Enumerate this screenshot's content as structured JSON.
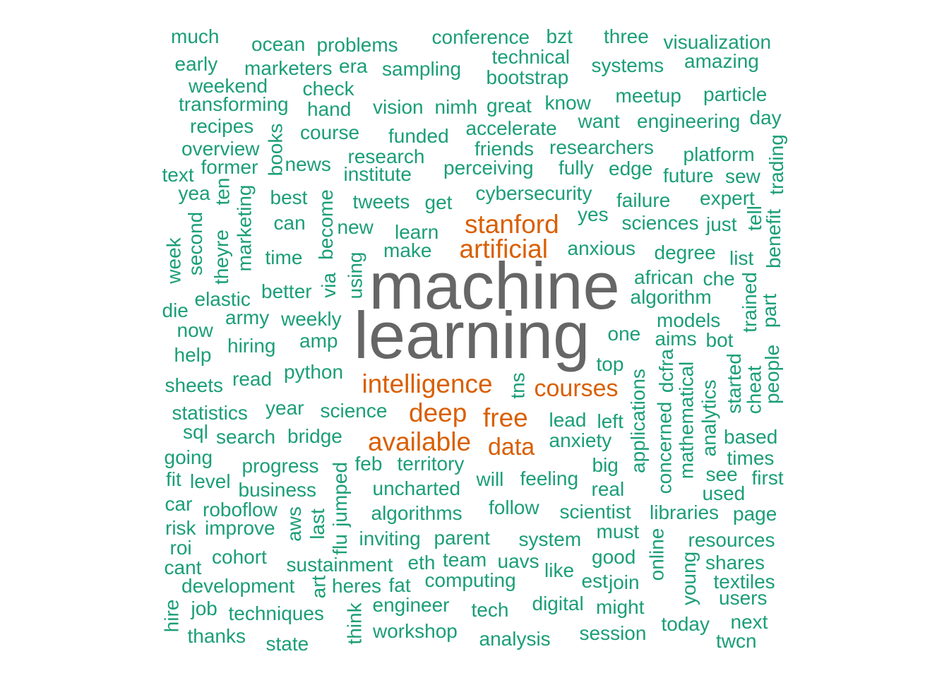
{
  "colors": {
    "primary_word": "#666666",
    "high_freq": "#d95f02",
    "normal": "#1b9e77"
  },
  "words": [
    {
      "text": "machine",
      "group": "primary_word"
    },
    {
      "text": "learning",
      "group": "primary_word"
    },
    {
      "text": "stanford",
      "group": "high_freq"
    },
    {
      "text": "artificial",
      "group": "high_freq"
    },
    {
      "text": "intelligence",
      "group": "high_freq"
    },
    {
      "text": "courses",
      "group": "high_freq"
    },
    {
      "text": "deep",
      "group": "high_freq"
    },
    {
      "text": "free",
      "group": "high_freq"
    },
    {
      "text": "available",
      "group": "high_freq"
    },
    {
      "text": "data",
      "group": "high_freq"
    },
    {
      "text": "much",
      "group": "normal"
    },
    {
      "text": "ocean",
      "group": "normal"
    },
    {
      "text": "problems",
      "group": "normal"
    },
    {
      "text": "conference",
      "group": "normal"
    },
    {
      "text": "bzt",
      "group": "normal"
    },
    {
      "text": "three",
      "group": "normal"
    },
    {
      "text": "visualization",
      "group": "normal"
    },
    {
      "text": "technical",
      "group": "normal"
    },
    {
      "text": "early",
      "group": "normal"
    },
    {
      "text": "marketers",
      "group": "normal"
    },
    {
      "text": "era",
      "group": "normal"
    },
    {
      "text": "sampling",
      "group": "normal"
    },
    {
      "text": "bootstrap",
      "group": "normal"
    },
    {
      "text": "systems",
      "group": "normal"
    },
    {
      "text": "amazing",
      "group": "normal"
    },
    {
      "text": "weekend",
      "group": "normal"
    },
    {
      "text": "check",
      "group": "normal"
    },
    {
      "text": "meetup",
      "group": "normal"
    },
    {
      "text": "particle",
      "group": "normal"
    },
    {
      "text": "transforming",
      "group": "normal"
    },
    {
      "text": "hand",
      "group": "normal"
    },
    {
      "text": "vision",
      "group": "normal"
    },
    {
      "text": "nimh",
      "group": "normal"
    },
    {
      "text": "great",
      "group": "normal"
    },
    {
      "text": "know",
      "group": "normal"
    },
    {
      "text": "want",
      "group": "normal"
    },
    {
      "text": "engineering",
      "group": "normal"
    },
    {
      "text": "day",
      "group": "normal"
    },
    {
      "text": "recipes",
      "group": "normal"
    },
    {
      "text": "course",
      "group": "normal"
    },
    {
      "text": "funded",
      "group": "normal"
    },
    {
      "text": "accelerate",
      "group": "normal"
    },
    {
      "text": "books",
      "group": "normal"
    },
    {
      "text": "overview",
      "group": "normal"
    },
    {
      "text": "research",
      "group": "normal"
    },
    {
      "text": "friends",
      "group": "normal"
    },
    {
      "text": "researchers",
      "group": "normal"
    },
    {
      "text": "platform",
      "group": "normal"
    },
    {
      "text": "trading",
      "group": "normal"
    },
    {
      "text": "text",
      "group": "normal"
    },
    {
      "text": "former",
      "group": "normal"
    },
    {
      "text": "news",
      "group": "normal"
    },
    {
      "text": "institute",
      "group": "normal"
    },
    {
      "text": "perceiving",
      "group": "normal"
    },
    {
      "text": "fully",
      "group": "normal"
    },
    {
      "text": "edge",
      "group": "normal"
    },
    {
      "text": "future",
      "group": "normal"
    },
    {
      "text": "sew",
      "group": "normal"
    },
    {
      "text": "yea",
      "group": "normal"
    },
    {
      "text": "ten",
      "group": "normal"
    },
    {
      "text": "best",
      "group": "normal"
    },
    {
      "text": "become",
      "group": "normal"
    },
    {
      "text": "tweets",
      "group": "normal"
    },
    {
      "text": "get",
      "group": "normal"
    },
    {
      "text": "cybersecurity",
      "group": "normal"
    },
    {
      "text": "failure",
      "group": "normal"
    },
    {
      "text": "expert",
      "group": "normal"
    },
    {
      "text": "marketing",
      "group": "normal"
    },
    {
      "text": "benefit",
      "group": "normal"
    },
    {
      "text": "tell",
      "group": "normal"
    },
    {
      "text": "second",
      "group": "normal"
    },
    {
      "text": "can",
      "group": "normal"
    },
    {
      "text": "new",
      "group": "normal"
    },
    {
      "text": "learn",
      "group": "normal"
    },
    {
      "text": "yes",
      "group": "normal"
    },
    {
      "text": "sciences",
      "group": "normal"
    },
    {
      "text": "just",
      "group": "normal"
    },
    {
      "text": "theyre",
      "group": "normal"
    },
    {
      "text": "week",
      "group": "normal"
    },
    {
      "text": "time",
      "group": "normal"
    },
    {
      "text": "make",
      "group": "normal"
    },
    {
      "text": "anxious",
      "group": "normal"
    },
    {
      "text": "degree",
      "group": "normal"
    },
    {
      "text": "list",
      "group": "normal"
    },
    {
      "text": "using",
      "group": "normal"
    },
    {
      "text": "african",
      "group": "normal"
    },
    {
      "text": "che",
      "group": "normal"
    },
    {
      "text": "elastic",
      "group": "normal"
    },
    {
      "text": "better",
      "group": "normal"
    },
    {
      "text": "via",
      "group": "normal"
    },
    {
      "text": "algorithm",
      "group": "normal"
    },
    {
      "text": "trained",
      "group": "normal"
    },
    {
      "text": "part",
      "group": "normal"
    },
    {
      "text": "die",
      "group": "normal"
    },
    {
      "text": "army",
      "group": "normal"
    },
    {
      "text": "weekly",
      "group": "normal"
    },
    {
      "text": "models",
      "group": "normal"
    },
    {
      "text": "now",
      "group": "normal"
    },
    {
      "text": "amp",
      "group": "normal"
    },
    {
      "text": "one",
      "group": "normal"
    },
    {
      "text": "aims",
      "group": "normal"
    },
    {
      "text": "bot",
      "group": "normal"
    },
    {
      "text": "help",
      "group": "normal"
    },
    {
      "text": "hiring",
      "group": "normal"
    },
    {
      "text": "top",
      "group": "normal"
    },
    {
      "text": "people",
      "group": "normal"
    },
    {
      "text": "read",
      "group": "normal"
    },
    {
      "text": "python",
      "group": "normal"
    },
    {
      "text": "applications",
      "group": "normal"
    },
    {
      "text": "dcfra",
      "group": "normal"
    },
    {
      "text": "mathematical",
      "group": "normal"
    },
    {
      "text": "started",
      "group": "normal"
    },
    {
      "text": "cheat",
      "group": "normal"
    },
    {
      "text": "sheets",
      "group": "normal"
    },
    {
      "text": "tns",
      "group": "normal"
    },
    {
      "text": "statistics",
      "group": "normal"
    },
    {
      "text": "year",
      "group": "normal"
    },
    {
      "text": "science",
      "group": "normal"
    },
    {
      "text": "lead",
      "group": "normal"
    },
    {
      "text": "left",
      "group": "normal"
    },
    {
      "text": "concerned",
      "group": "normal"
    },
    {
      "text": "analytics",
      "group": "normal"
    },
    {
      "text": "sql",
      "group": "normal"
    },
    {
      "text": "search",
      "group": "normal"
    },
    {
      "text": "bridge",
      "group": "normal"
    },
    {
      "text": "anxiety",
      "group": "normal"
    },
    {
      "text": "based",
      "group": "normal"
    },
    {
      "text": "going",
      "group": "normal"
    },
    {
      "text": "times",
      "group": "normal"
    },
    {
      "text": "progress",
      "group": "normal"
    },
    {
      "text": "feb",
      "group": "normal"
    },
    {
      "text": "territory",
      "group": "normal"
    },
    {
      "text": "big",
      "group": "normal"
    },
    {
      "text": "see",
      "group": "normal"
    },
    {
      "text": "fit",
      "group": "normal"
    },
    {
      "text": "level",
      "group": "normal"
    },
    {
      "text": "will",
      "group": "normal"
    },
    {
      "text": "feeling",
      "group": "normal"
    },
    {
      "text": "first",
      "group": "normal"
    },
    {
      "text": "business",
      "group": "normal"
    },
    {
      "text": "uncharted",
      "group": "normal"
    },
    {
      "text": "real",
      "group": "normal"
    },
    {
      "text": "used",
      "group": "normal"
    },
    {
      "text": "car",
      "group": "normal"
    },
    {
      "text": "roboflow",
      "group": "normal"
    },
    {
      "text": "jumped",
      "group": "normal"
    },
    {
      "text": "follow",
      "group": "normal"
    },
    {
      "text": "risk",
      "group": "normal"
    },
    {
      "text": "algorithms",
      "group": "normal"
    },
    {
      "text": "scientist",
      "group": "normal"
    },
    {
      "text": "libraries",
      "group": "normal"
    },
    {
      "text": "page",
      "group": "normal"
    },
    {
      "text": "improve",
      "group": "normal"
    },
    {
      "text": "aws",
      "group": "normal"
    },
    {
      "text": "last",
      "group": "normal"
    },
    {
      "text": "must",
      "group": "normal"
    },
    {
      "text": "online",
      "group": "normal"
    },
    {
      "text": "inviting",
      "group": "normal"
    },
    {
      "text": "parent",
      "group": "normal"
    },
    {
      "text": "system",
      "group": "normal"
    },
    {
      "text": "resources",
      "group": "normal"
    },
    {
      "text": "roi",
      "group": "normal"
    },
    {
      "text": "flu",
      "group": "normal"
    },
    {
      "text": "cohort",
      "group": "normal"
    },
    {
      "text": "good",
      "group": "normal"
    },
    {
      "text": "cant",
      "group": "normal"
    },
    {
      "text": "sustainment",
      "group": "normal"
    },
    {
      "text": "eth",
      "group": "normal"
    },
    {
      "text": "team",
      "group": "normal"
    },
    {
      "text": "uavs",
      "group": "normal"
    },
    {
      "text": "young",
      "group": "normal"
    },
    {
      "text": "shares",
      "group": "normal"
    },
    {
      "text": "like",
      "group": "normal"
    },
    {
      "text": "art",
      "group": "normal"
    },
    {
      "text": "development",
      "group": "normal"
    },
    {
      "text": "heres",
      "group": "normal"
    },
    {
      "text": "fat",
      "group": "normal"
    },
    {
      "text": "computing",
      "group": "normal"
    },
    {
      "text": "est",
      "group": "normal"
    },
    {
      "text": "join",
      "group": "normal"
    },
    {
      "text": "textiles",
      "group": "normal"
    },
    {
      "text": "hire",
      "group": "normal"
    },
    {
      "text": "job",
      "group": "normal"
    },
    {
      "text": "engineer",
      "group": "normal"
    },
    {
      "text": "tech",
      "group": "normal"
    },
    {
      "text": "digital",
      "group": "normal"
    },
    {
      "text": "might",
      "group": "normal"
    },
    {
      "text": "users",
      "group": "normal"
    },
    {
      "text": "techniques",
      "group": "normal"
    },
    {
      "text": "think",
      "group": "normal"
    },
    {
      "text": "today",
      "group": "normal"
    },
    {
      "text": "next",
      "group": "normal"
    },
    {
      "text": "thanks",
      "group": "normal"
    },
    {
      "text": "workshop",
      "group": "normal"
    },
    {
      "text": "session",
      "group": "normal"
    },
    {
      "text": "analysis",
      "group": "normal"
    },
    {
      "text": "twcn",
      "group": "normal"
    },
    {
      "text": "state",
      "group": "normal"
    }
  ]
}
